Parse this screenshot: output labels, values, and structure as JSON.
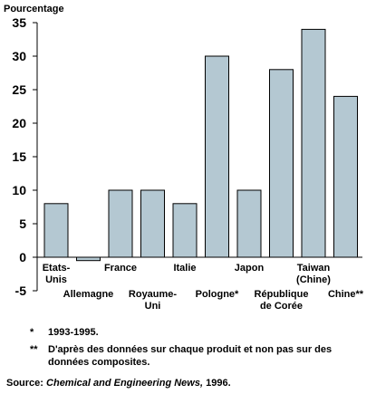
{
  "chart_data": {
    "type": "bar",
    "ylabel": "Pourcentage",
    "ylim": [
      -5,
      35
    ],
    "yticks": [
      -5,
      0,
      5,
      10,
      15,
      20,
      25,
      30,
      35
    ],
    "categories": [
      "Etats-Unis",
      "Allemagne",
      "France",
      "Royaume-Uni",
      "Italie",
      "Pologne*",
      "Japon",
      "République de Corée",
      "Taiwan (Chine)",
      "Chine**"
    ],
    "category_label_lines": [
      [
        "Etats-",
        "Unis"
      ],
      [
        "Allemagne"
      ],
      [
        "France"
      ],
      [
        "Royaume-",
        "Uni"
      ],
      [
        "Italie"
      ],
      [
        "Pologne*"
      ],
      [
        "Japon"
      ],
      [
        "République",
        "de Corée"
      ],
      [
        "Taiwan",
        "(Chine)"
      ],
      [
        "Chine**"
      ]
    ],
    "category_label_row": [
      "upper",
      "lower",
      "upper",
      "lower",
      "upper",
      "lower",
      "upper",
      "lower",
      "upper",
      "lower"
    ],
    "values": [
      8,
      -0.5,
      10,
      10,
      8,
      30,
      10,
      28,
      34,
      24
    ],
    "bar_color": "#b4c8d2",
    "grid": false,
    "legend": "none"
  },
  "footnotes": [
    {
      "mark": "*",
      "text": "1993-1995."
    },
    {
      "mark": "**",
      "text": "D'après des données sur chaque produit et non pas sur des données composites."
    }
  ],
  "source": {
    "prefix": "Source:",
    "publication": "Chemical and Engineering News,",
    "year": "1996."
  }
}
